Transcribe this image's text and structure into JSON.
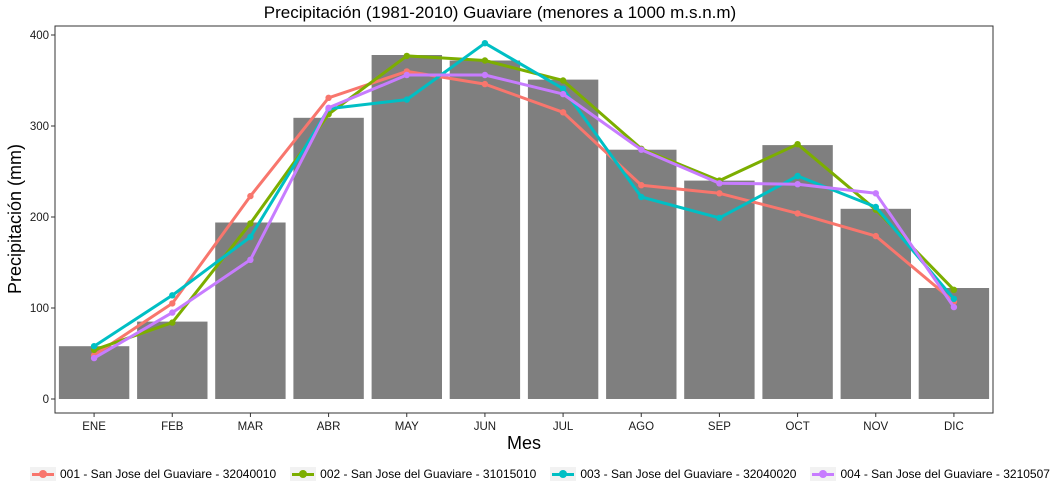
{
  "chart_data": {
    "type": "bar+line",
    "title": "Precipitación (1981-2010) Guaviare (menores a 1000 m.s.n.m)",
    "xlabel": "Mes",
    "ylabel": "Precipitación (mm)",
    "ylim": [
      -20,
      420
    ],
    "yticks": [
      "0",
      "100",
      "200",
      "300",
      "400"
    ],
    "grid": false,
    "legend_position": "bottom",
    "categories": [
      "ENE",
      "FEB",
      "MAR",
      "ABR",
      "MAY",
      "JUN",
      "JUL",
      "AGO",
      "SEP",
      "OCT",
      "NOV",
      "DIC"
    ],
    "bars": {
      "color": "#7f7f7f",
      "values": [
        58,
        85,
        194,
        309,
        378,
        372,
        351,
        274,
        240,
        279,
        209,
        122
      ]
    },
    "series": [
      {
        "name": "001 - San Jose del Guaviare - 32040010",
        "color": "#f8766d",
        "values": [
          48,
          105,
          223,
          331,
          360,
          346,
          315,
          235,
          226,
          204,
          179,
          107
        ]
      },
      {
        "name": "002 - San Jose del Guaviare - 31015010",
        "color": "#7cae00",
        "values": [
          54,
          84,
          193,
          313,
          377,
          372,
          350,
          275,
          240,
          280,
          208,
          120
        ]
      },
      {
        "name": "003 - San Jose del Guaviare - 32040020",
        "color": "#00bfc4",
        "values": [
          58,
          114,
          178,
          319,
          329,
          391,
          341,
          222,
          199,
          245,
          211,
          110
        ]
      },
      {
        "name": "004 - San Jose del Guaviare - 3210507",
        "color": "#c77cff",
        "values": [
          45,
          95,
          153,
          320,
          356,
          356,
          335,
          274,
          237,
          236,
          226,
          101
        ]
      }
    ]
  }
}
